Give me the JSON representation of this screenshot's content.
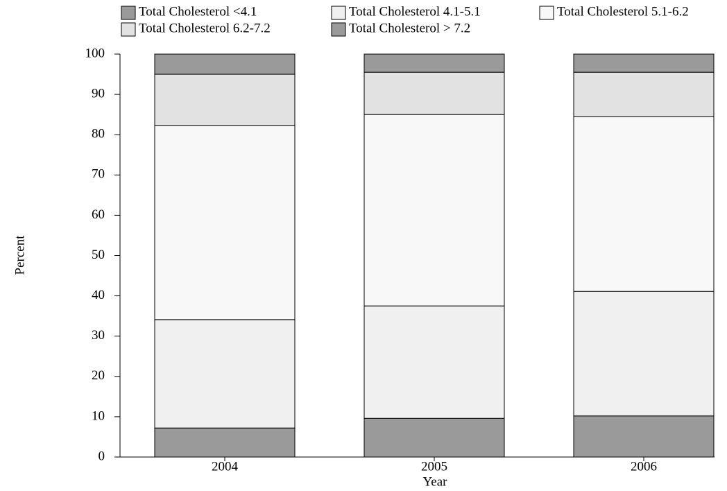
{
  "chart_data": {
    "type": "stacked_bar",
    "x_label": "Year",
    "y_label": "Percent",
    "categories": [
      "2004",
      "2005",
      "2006"
    ],
    "series": [
      {
        "name": "Total Cholesterol <4.1",
        "color": "#9a9a9a",
        "values": [
          7.2,
          9.6,
          10.2
        ]
      },
      {
        "name": "Total Cholesterol 4.1-5.1",
        "color": "#f0f0f0",
        "values": [
          26.9,
          27.9,
          30.9
        ]
      },
      {
        "name": "Total Cholesterol 5.1-6.2",
        "color": "#f8f8f8",
        "values": [
          48.2,
          47.5,
          43.4
        ]
      },
      {
        "name": "Total Cholesterol 6.2-7.2",
        "color": "#e2e2e2",
        "values": [
          12.7,
          10.5,
          11.0
        ]
      },
      {
        "name": "Total Cholesterol > 7.2",
        "color": "#9a9a9a",
        "values": [
          5.0,
          4.5,
          4.5
        ]
      }
    ],
    "ylim": [
      0,
      100
    ],
    "yticks": [
      0,
      10,
      20,
      30,
      40,
      50,
      60,
      70,
      80,
      90,
      100
    ]
  }
}
